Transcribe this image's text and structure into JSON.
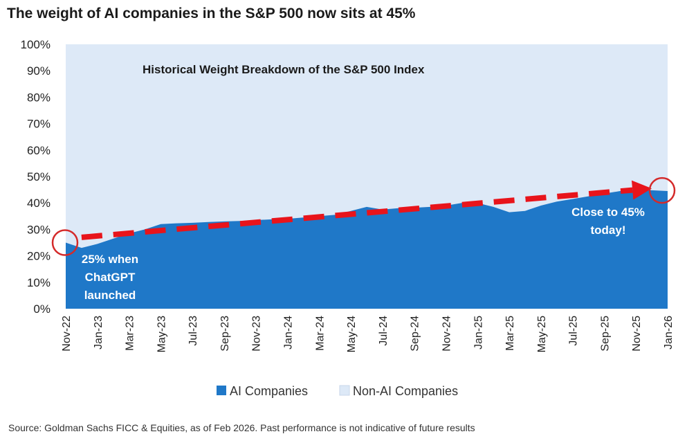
{
  "header": {
    "title": "The weight of AI companies in the S&P 500 now sits at 45%"
  },
  "footer": {
    "source": "Source: Goldman Sachs FICC & Equities, as of Feb 2026. Past performance is not indicative of future results"
  },
  "colors": {
    "ai": "#1f78c8",
    "nonai": "#dde9f7",
    "arrow": "#e8141b",
    "circle": "#d42a2a"
  },
  "chart_data": {
    "type": "area",
    "title": "Historical Weight Breakdown of the S&P 500 Index",
    "y_ticks": [
      "0%",
      "10%",
      "20%",
      "30%",
      "40%",
      "50%",
      "60%",
      "70%",
      "80%",
      "90%",
      "100%"
    ],
    "ylim": [
      0,
      100
    ],
    "x_ticks": [
      "Nov-22",
      "Jan-23",
      "Mar-23",
      "May-23",
      "Jul-23",
      "Sep-23",
      "Nov-23",
      "Jan-24",
      "Mar-24",
      "May-24",
      "Jul-24",
      "Sep-24",
      "Nov-24",
      "Jan-25",
      "Mar-25",
      "May-25",
      "Jul-25",
      "Sep-25",
      "Nov-25",
      "Jan-26"
    ],
    "series": [
      {
        "name": "AI Companies",
        "x": [
          "Nov-22",
          "Dec-22",
          "Jan-23",
          "Feb-23",
          "Mar-23",
          "Apr-23",
          "May-23",
          "Jun-23",
          "Jul-23",
          "Aug-23",
          "Sep-23",
          "Oct-23",
          "Nov-23",
          "Dec-23",
          "Jan-24",
          "Feb-24",
          "Mar-24",
          "Apr-24",
          "May-24",
          "Jun-24",
          "Jul-24",
          "Aug-24",
          "Sep-24",
          "Oct-24",
          "Nov-24",
          "Dec-24",
          "Jan-25",
          "Feb-25",
          "Mar-25",
          "Apr-25",
          "May-25",
          "Jun-25",
          "Jul-25",
          "Aug-25",
          "Sep-25",
          "Oct-25",
          "Nov-25",
          "Dec-25",
          "Jan-26"
        ],
        "values": [
          25,
          23,
          24.5,
          26.5,
          28.5,
          30,
          32,
          32.3,
          32.5,
          32.8,
          33,
          33.2,
          33.5,
          33.8,
          34,
          34.5,
          35,
          35.5,
          37,
          38.5,
          37.5,
          38,
          38.2,
          38.5,
          39,
          40,
          40,
          38.5,
          36.5,
          37,
          39,
          40.5,
          41.5,
          42.5,
          43.5,
          44.5,
          45,
          44.8,
          44.5
        ]
      },
      {
        "name": "Non-AI Companies",
        "values": "remainder to 100%"
      }
    ],
    "annotations": [
      {
        "text_lines": [
          "25% when",
          "ChatGPT",
          "launched"
        ],
        "x": "Nov-22",
        "y": 25
      },
      {
        "text_lines": [
          "Close to 45%",
          "today!"
        ],
        "x": "Jan-26",
        "y": 45
      }
    ],
    "trend_arrow": {
      "from": {
        "x": "Dec-22",
        "y": 27
      },
      "to": {
        "x": "Dec-25",
        "y": 45.5
      }
    },
    "legend": {
      "placement": "bottom-center",
      "items": [
        "AI Companies",
        "Non-AI Companies"
      ]
    }
  }
}
